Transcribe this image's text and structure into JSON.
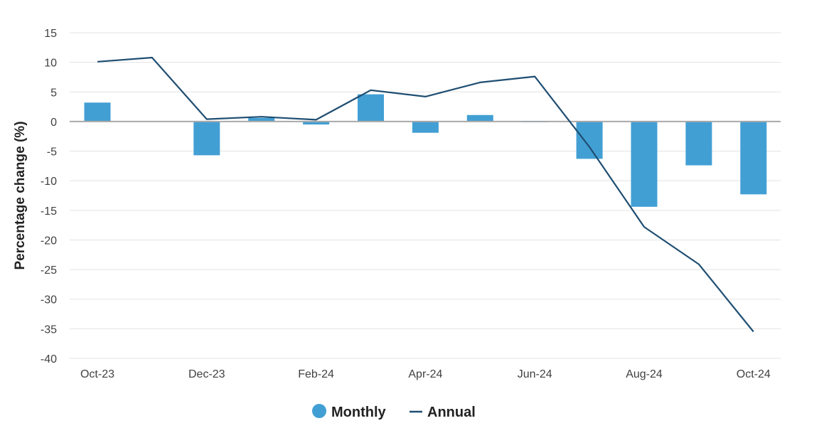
{
  "chart_data": {
    "type": "bar",
    "categories": [
      "Oct-23",
      "Nov-23",
      "Dec-23",
      "Jan-24",
      "Feb-24",
      "Mar-24",
      "Apr-24",
      "May-24",
      "Jun-24",
      "Jul-24",
      "Aug-24",
      "Sep-24",
      "Oct-24"
    ],
    "x_tick_labels": [
      "Oct-23",
      "",
      "Dec-23",
      "",
      "Feb-24",
      "",
      "Apr-24",
      "",
      "Jun-24",
      "",
      "Aug-24",
      "",
      "Oct-24"
    ],
    "series": [
      {
        "name": "Monthly",
        "type": "bar",
        "color": "#429fd4",
        "values": [
          3.2,
          0.1,
          -5.7,
          0.6,
          -0.5,
          4.6,
          -1.9,
          1.1,
          0.0,
          -6.3,
          -14.4,
          -7.4,
          -12.3
        ]
      },
      {
        "name": "Annual",
        "type": "line",
        "color": "#1f4e72",
        "values": [
          10.1,
          10.8,
          0.4,
          0.8,
          0.3,
          5.3,
          4.2,
          6.6,
          7.6,
          -4.3,
          -17.8,
          -24.1,
          -35.5
        ]
      }
    ],
    "ylabel": "Percentage change (%)",
    "xlabel": "",
    "ylim": [
      -40,
      15
    ],
    "yticks": [
      15,
      10,
      5,
      0,
      -5,
      -10,
      -15,
      -20,
      -25,
      -30,
      -35,
      -40
    ],
    "grid": true,
    "legend_position": "bottom-center"
  }
}
